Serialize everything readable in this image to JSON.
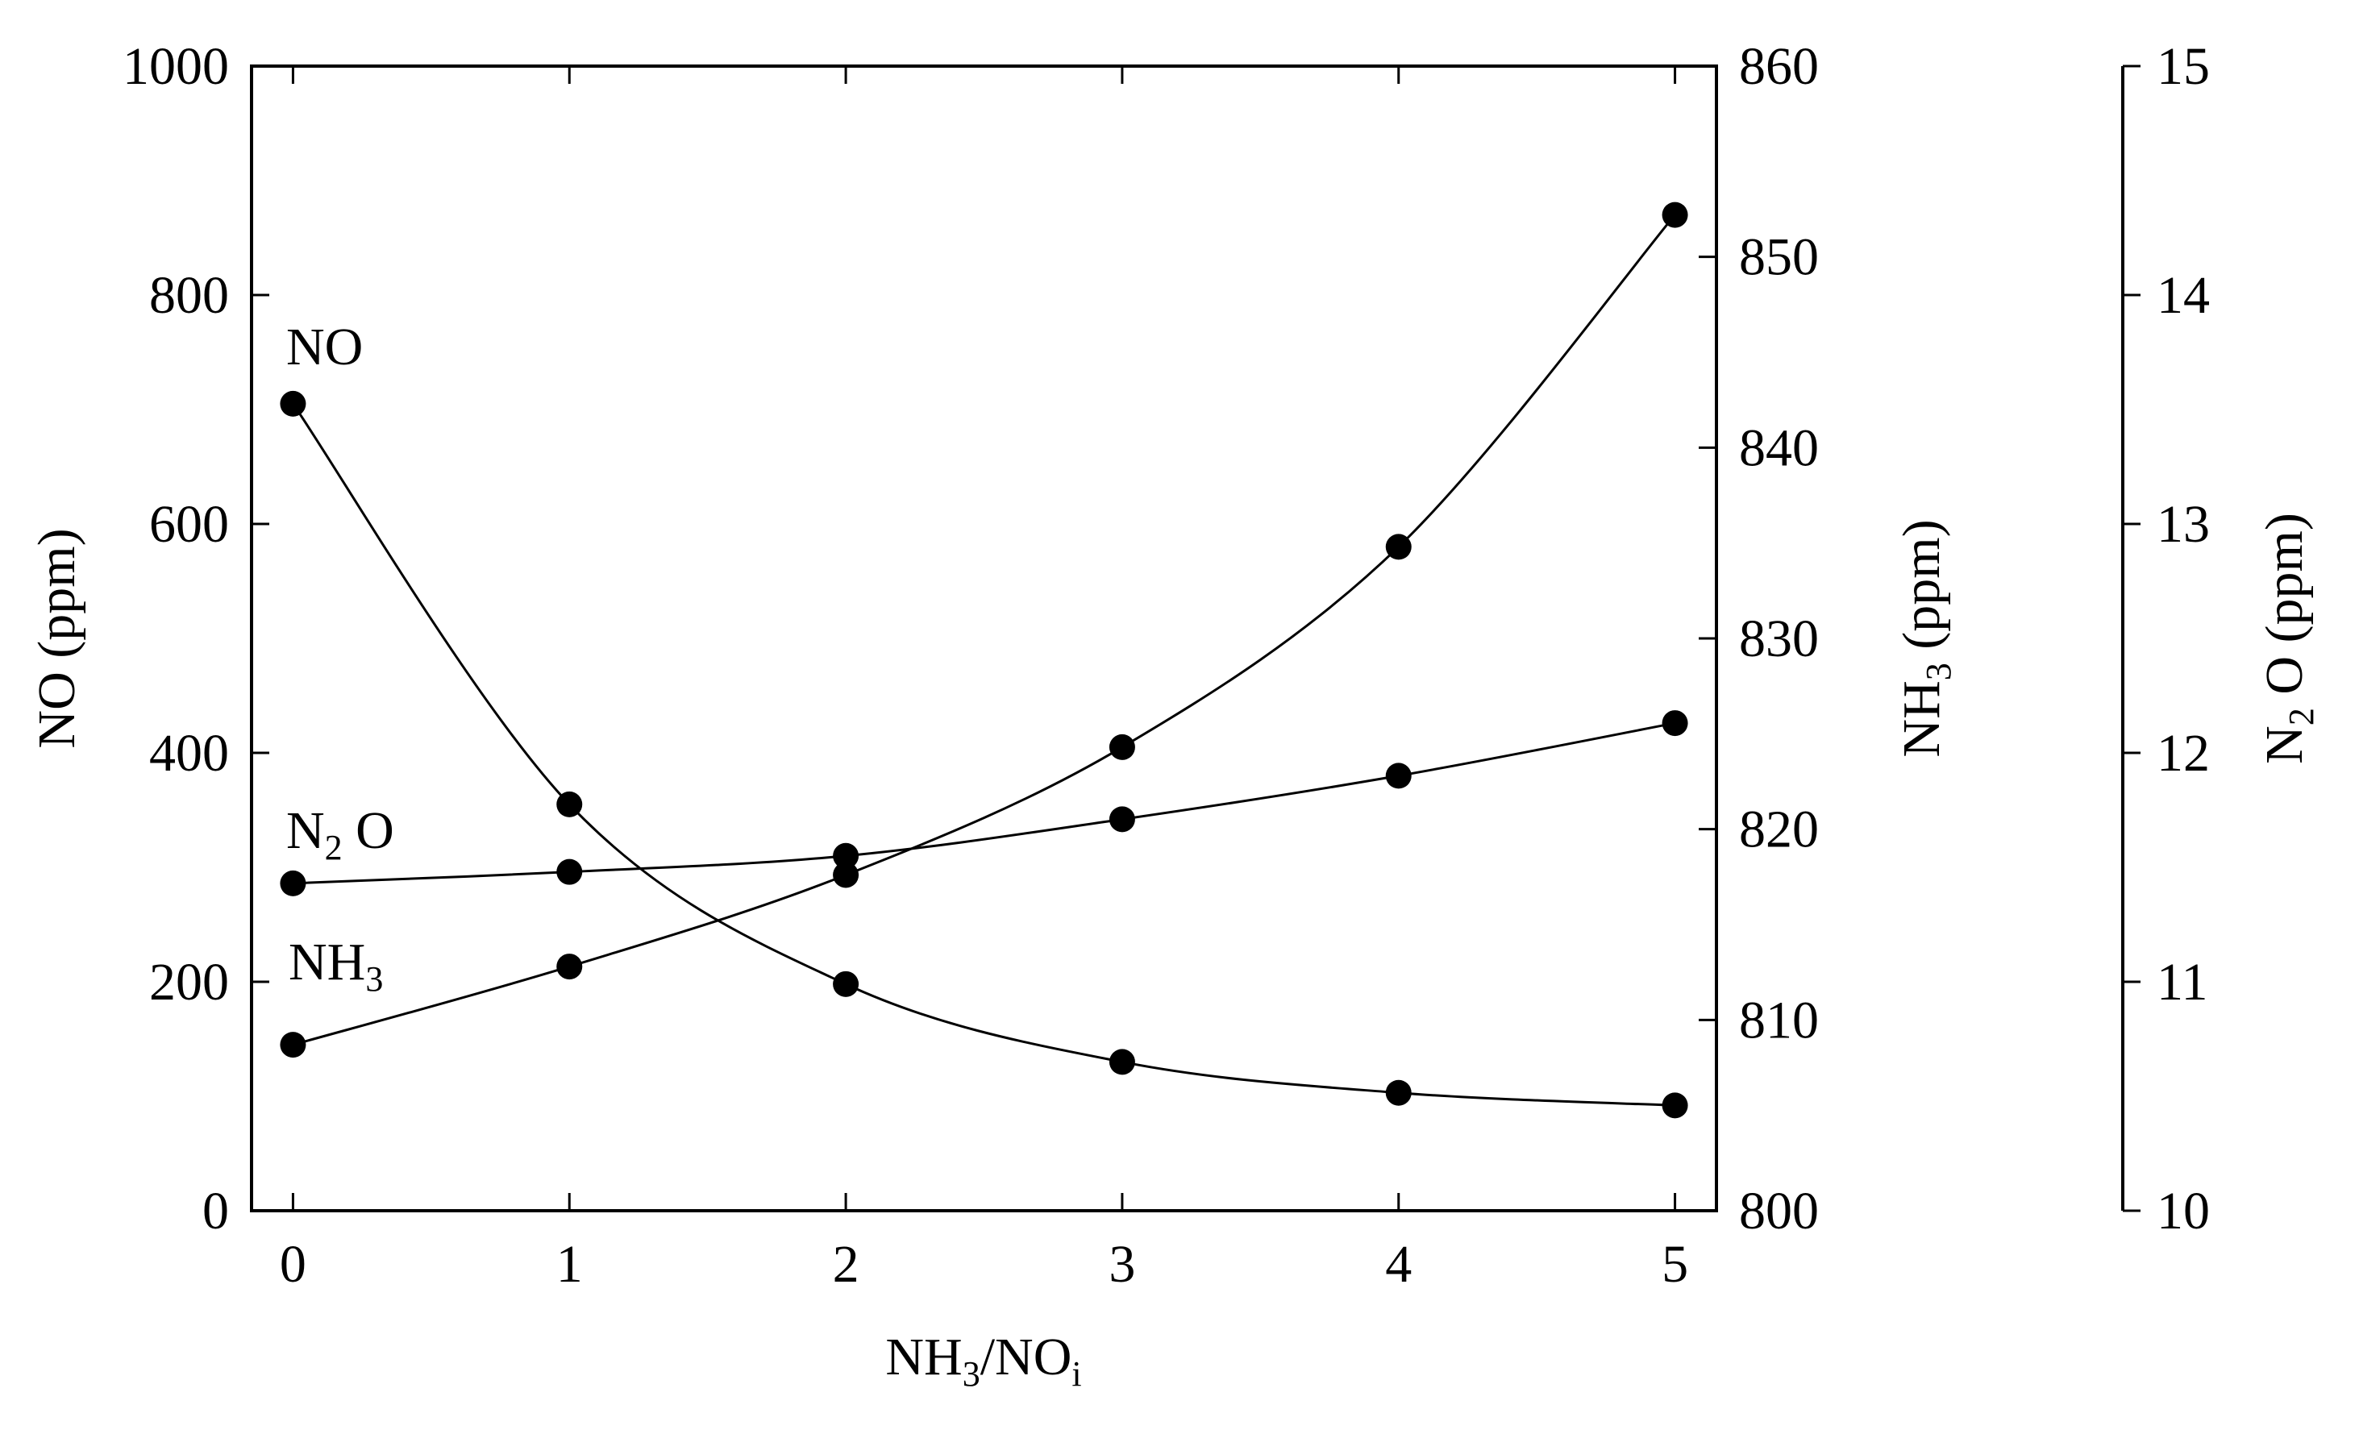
{
  "chart_data": {
    "type": "line",
    "x_axis": {
      "label": {
        "main": "NH",
        "sub1": "3",
        "mid": "/NO",
        "sub2": "i"
      },
      "ticks": [
        0,
        1,
        2,
        3,
        4,
        5
      ],
      "range": [
        -0.15,
        5.15
      ]
    },
    "y_axes": [
      {
        "id": "no",
        "position": "left",
        "label": "NO (ppm)",
        "range": [
          0,
          1000
        ],
        "ticks": [
          0,
          200,
          400,
          600,
          800,
          1000
        ]
      },
      {
        "id": "nh3",
        "position": "right",
        "label": {
          "main": "NH",
          "sub": "3",
          "rest": " (ppm)"
        },
        "range": [
          800,
          860
        ],
        "ticks": [
          800,
          810,
          820,
          830,
          840,
          850,
          860
        ]
      },
      {
        "id": "n2o",
        "position": "right-outer",
        "label": {
          "main": "N",
          "sub": "2",
          "rest": " O (ppm)"
        },
        "range": [
          10,
          15
        ],
        "ticks": [
          10,
          11,
          12,
          13,
          14,
          15
        ]
      }
    ],
    "series": [
      {
        "name": "NO",
        "axis": "no",
        "label": {
          "main": "NO"
        },
        "x": [
          0,
          1,
          2,
          3,
          4,
          5
        ],
        "y": [
          705,
          355,
          198,
          130,
          103,
          92
        ]
      },
      {
        "name": "N2O",
        "axis": "n2o",
        "label": {
          "main": "N",
          "sub": "2",
          "rest": " O"
        },
        "x": [
          0,
          1,
          2,
          3,
          4,
          5
        ],
        "y": [
          11.43,
          11.48,
          11.55,
          11.71,
          11.9,
          12.13
        ]
      },
      {
        "name": "NH3",
        "axis": "nh3",
        "label": {
          "main": "NH",
          "sub": "3"
        },
        "x": [
          0,
          1,
          2,
          3,
          4,
          5
        ],
        "y": [
          808.7,
          812.8,
          817.6,
          824.3,
          834.8,
          852.2
        ]
      }
    ],
    "grid": false,
    "legend": "inline labels near left ends of curves",
    "colors": {
      "line": "#000000",
      "marker": "#000000"
    }
  }
}
